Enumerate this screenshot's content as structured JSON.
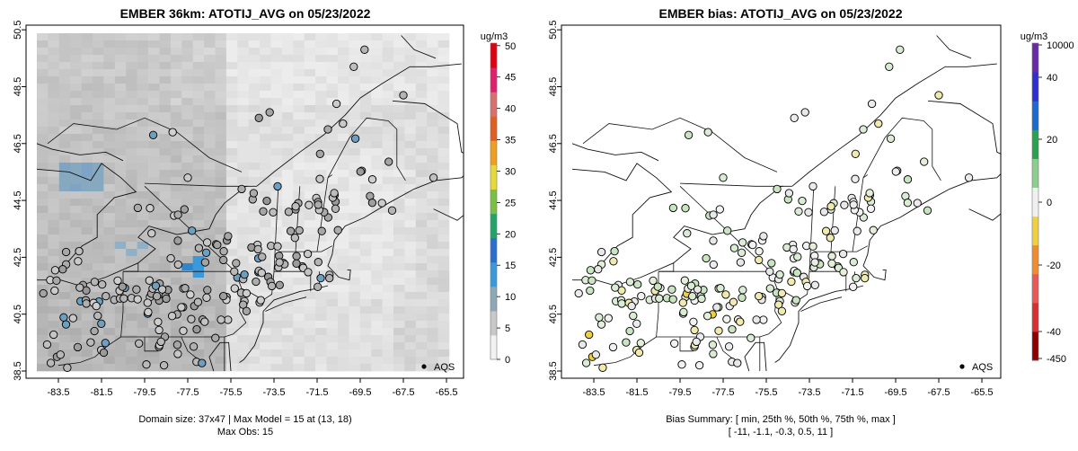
{
  "left_panel": {
    "title": "EMBER 36km: ATOTIJ_AVG on 05/23/2022",
    "colorbar": {
      "unit": "ug/m3",
      "ticks": [
        "0",
        "5",
        "10",
        "15",
        "20",
        "25",
        "30",
        "35",
        "40",
        "45",
        "50"
      ],
      "range": [
        0,
        50
      ],
      "colors": [
        "#f2f2f2",
        "#c8c8c8",
        "#8fa8b8",
        "#3a9ad9",
        "#2a6fd0",
        "#22a36a",
        "#7cc043",
        "#e6d93a",
        "#f0a020",
        "#e06020",
        "#d87070",
        "#e0206a",
        "#e00010"
      ]
    },
    "legend": "AQS",
    "footer_line1": "Domain size: 37x47 | Max Model = 15 at (13, 18)",
    "footer_line2": "Max Obs: 15"
  },
  "right_panel": {
    "title": "EMBER bias: ATOTIJ_AVG on 05/23/2022",
    "colorbar": {
      "unit": "ug/m3",
      "ticks": [
        "10000",
        "40",
        "20",
        "0",
        "-20",
        "-40",
        "-450"
      ],
      "colors": [
        "#8b0000",
        "#d83030",
        "#e85a5a",
        "#f08c30",
        "#f0d040",
        "#f0f0f0",
        "#8ccf8c",
        "#2aa050",
        "#1a6ad0",
        "#3030d0",
        "#6a2aa8"
      ]
    },
    "legend": "AQS",
    "footer_line1": "Bias Summary: [ min, 25th %, 50th %, 75th %, max ]",
    "footer_line2": "[ -11,   -1.1,   -0.3,   0.5,   11 ]"
  },
  "chart_data": {
    "type": "map",
    "x_ticks": [
      "-83.5",
      "-81.5",
      "-79.5",
      "-77.5",
      "-75.5",
      "-73.5",
      "-71.5",
      "-69.5",
      "-67.5",
      "-65.5"
    ],
    "y_ticks": [
      "50.5",
      "48.5",
      "46.5",
      "44.5",
      "42.5",
      "40.5",
      "38.5"
    ],
    "lon_range": [
      -84.5,
      -65.0
    ],
    "lat_range": [
      38.5,
      50.6
    ],
    "grid_size": "37x47",
    "max_model": 15,
    "max_model_cell": "(13, 18)",
    "max_obs": 15,
    "bias_summary": {
      "min": -11,
      "p25": -1.1,
      "p50": -0.3,
      "p75": 0.5,
      "max": 11
    }
  }
}
